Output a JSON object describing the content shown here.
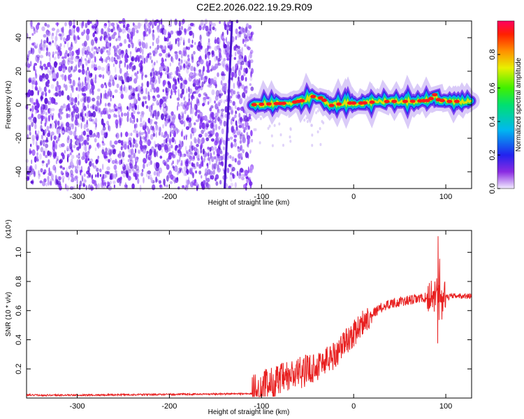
{
  "title": "C2E2.2026.022.19.29.R09",
  "colors": {
    "line": "#e82020",
    "axis": "#000000",
    "speckle": "#7a2bf0"
  },
  "chart_data": [
    {
      "type": "heatmap",
      "xlabel": "Height of straight line (km)",
      "ylabel": "Frequency (Hz)",
      "xlim": [
        -355,
        128
      ],
      "ylim": [
        -50,
        50
      ],
      "x_ticks": [
        -300,
        -200,
        -100,
        0,
        100
      ],
      "y_ticks": [
        -40,
        -20,
        0,
        20,
        40
      ],
      "colorbar": {
        "label": "Normalized spectral amplitude",
        "range": [
          0.0,
          1.0
        ],
        "ticks": [
          "0.0",
          "0.2",
          "0.4",
          "0.6",
          "0.8"
        ],
        "colormap": "rainbow"
      },
      "noise_region": [
        -355,
        -110
      ],
      "signal_band": {
        "x": [
          -110,
          -90,
          -70,
          -55,
          -45,
          -35,
          -25,
          -10,
          0,
          10,
          20,
          40,
          60,
          80,
          85,
          88,
          92,
          100,
          128
        ],
        "freq": [
          0,
          0.5,
          1.0,
          2.5,
          5,
          4,
          -0.5,
          1,
          1,
          1,
          1.5,
          2,
          2,
          2.5,
          4,
          6,
          3,
          2,
          2
        ]
      },
      "streak": {
        "x_bottom": -140,
        "x_top": -132
      },
      "grid": false
    },
    {
      "type": "line",
      "xlabel": "Height of straight line (km)",
      "ylabel": "SNR (10 * v/v)",
      "y_scale_label": "(x10⁴)",
      "xlim": [
        -355,
        128
      ],
      "ylim": [
        0,
        1.15
      ],
      "x_ticks": [
        -300,
        -200,
        -100,
        0,
        100
      ],
      "y_ticks": [
        "0.2",
        "0.4",
        "0.6",
        "0.8",
        "1.0"
      ],
      "series": [
        {
          "x": [
            -355,
            -300,
            -200,
            -110,
            -95,
            -80,
            -60,
            -40,
            -20,
            -10,
            0,
            10,
            20,
            30,
            40,
            60,
            80,
            90,
            92,
            95,
            100,
            110,
            128
          ],
          "y": [
            0.02,
            0.02,
            0.025,
            0.03,
            0.08,
            0.12,
            0.17,
            0.22,
            0.3,
            0.38,
            0.44,
            0.52,
            0.58,
            0.62,
            0.65,
            0.67,
            0.69,
            0.72,
            0.55,
            0.65,
            0.69,
            0.7,
            0.7
          ]
        }
      ],
      "grid": false
    }
  ]
}
